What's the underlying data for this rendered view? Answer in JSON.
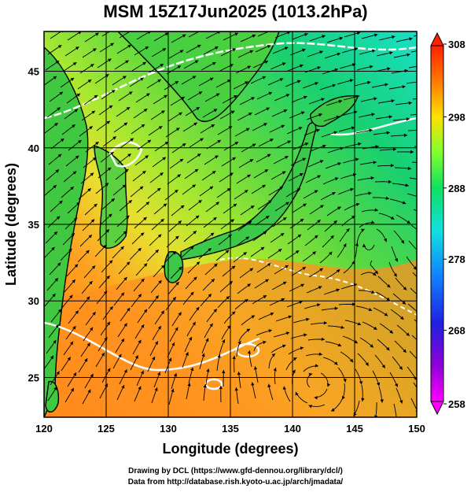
{
  "title": "MSM 15Z17Jun2025 (1013.2hPa)",
  "x_axis": {
    "label": "Longitude (degrees)",
    "ticks": [
      120,
      125,
      130,
      135,
      140,
      145,
      150
    ],
    "range": [
      120,
      150
    ]
  },
  "y_axis": {
    "label": "Latitude  (degrees)",
    "ticks": [
      25,
      30,
      35,
      40,
      45
    ],
    "range": [
      22.4,
      47.6
    ]
  },
  "colorbar": {
    "labels": [
      "308",
      "298",
      "288",
      "278",
      "268",
      "258"
    ],
    "values": [
      308,
      298,
      288,
      278,
      268,
      258
    ],
    "colors": [
      "#ff0000",
      "#ff6a00",
      "#ffb000",
      "#ffe000",
      "#d8ff2a",
      "#5cf24a",
      "#10e08a",
      "#10e0e0",
      "#10a0ff",
      "#2040ff",
      "#4010e0",
      "#b000d8",
      "#ff00ff"
    ]
  },
  "field_colors": {
    "warm": "#ff8a18",
    "mid": "#a8e830",
    "cool": "#14d872",
    "sea_cold": "#18e0c0"
  },
  "credits": [
    "Drawing by DCL (https://www.gfd-dennou.org/library/dcl/)",
    "Data from http://database.rish.kyoto-u.ac.jp/arch/jmadata/"
  ]
}
